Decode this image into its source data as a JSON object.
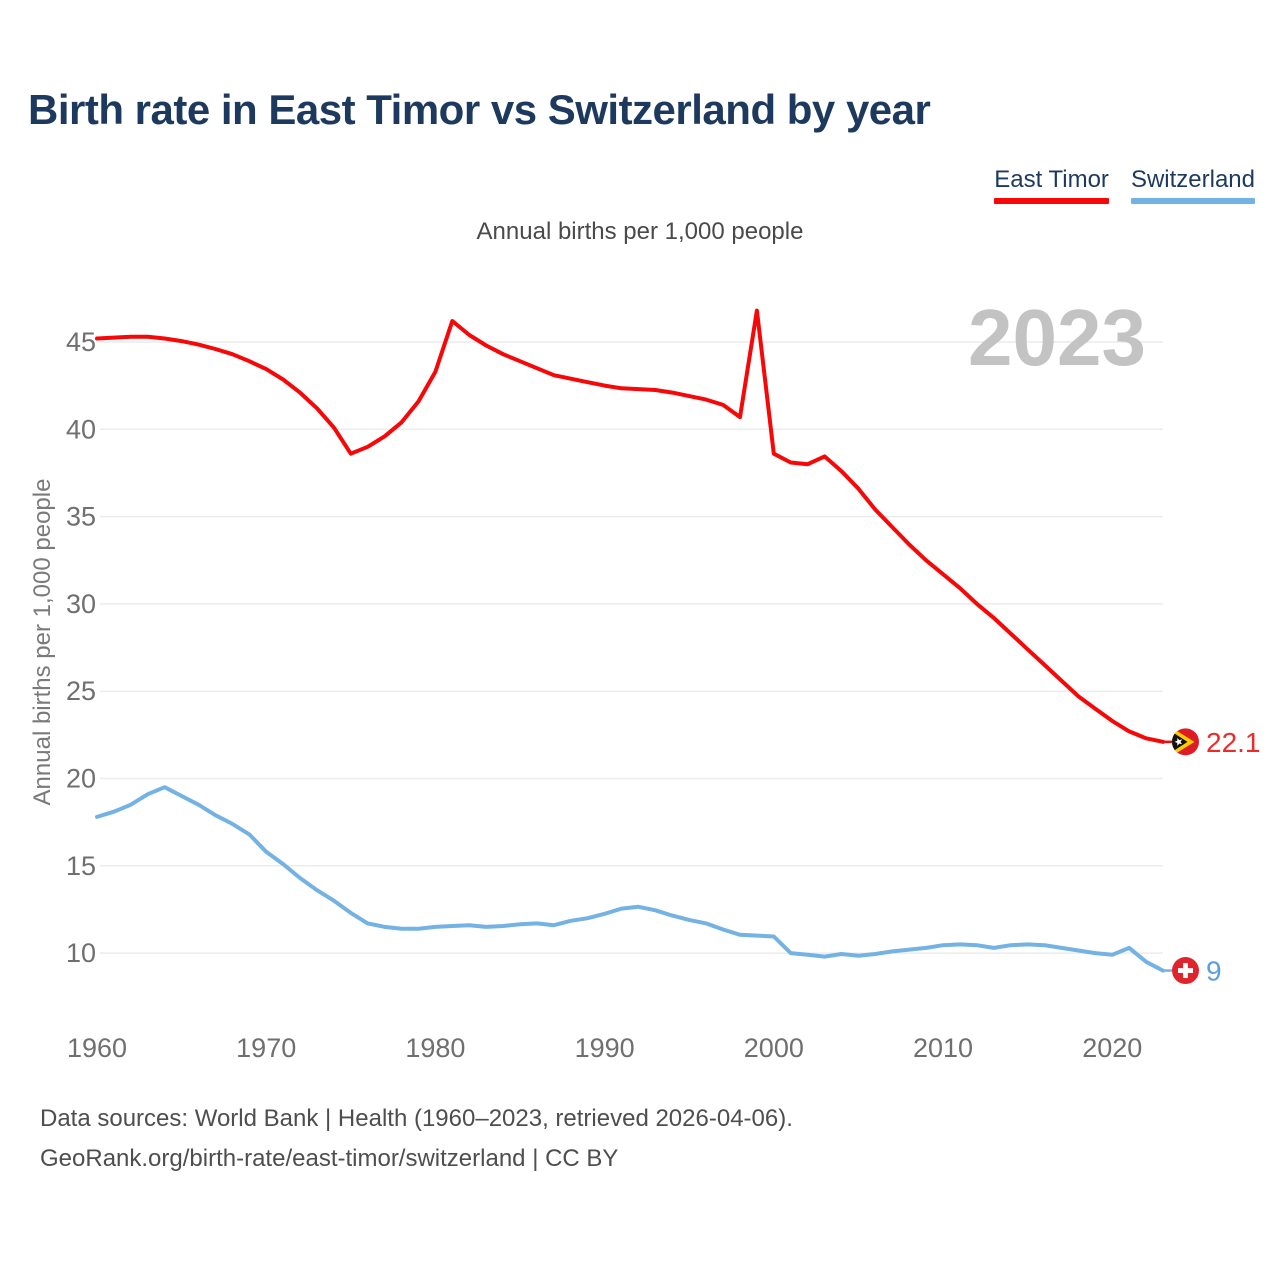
{
  "page": {
    "title": "Birth rate in East Timor vs Switzerland by year",
    "subtitle": "Annual births per 1,000 people",
    "watermark": "2023",
    "footer_line1": "Data sources: World Bank | Health (1960–2023, retrieved 2026-04-06).",
    "footer_line2": "GeoRank.org/birth-rate/east-timor/switzerland | CC BY"
  },
  "legend": {
    "items": [
      {
        "label": "East Timor",
        "color": "#f70707"
      },
      {
        "label": "Switzerland",
        "color": "#74b2e3"
      }
    ]
  },
  "chart_data": {
    "type": "line",
    "title": "Birth rate in East Timor vs Switzerland by year",
    "subtitle": "Annual births per 1,000 people",
    "xlabel": "",
    "ylabel": "Annual births per 1,000 people",
    "grid": "horizontal",
    "legend_position": "top-right",
    "xlim": [
      1960,
      2023
    ],
    "ylim": [
      8,
      47.5
    ],
    "x_ticks": [
      1960,
      1970,
      1980,
      1990,
      2000,
      2010,
      2020
    ],
    "y_ticks": [
      10,
      15,
      20,
      25,
      30,
      35,
      40,
      45
    ],
    "watermark": "2023",
    "x": [
      1960,
      1961,
      1962,
      1963,
      1964,
      1965,
      1966,
      1967,
      1968,
      1969,
      1970,
      1971,
      1972,
      1973,
      1974,
      1975,
      1976,
      1977,
      1978,
      1979,
      1980,
      1981,
      1982,
      1983,
      1984,
      1985,
      1986,
      1987,
      1988,
      1989,
      1990,
      1991,
      1992,
      1993,
      1994,
      1995,
      1996,
      1997,
      1998,
      1999,
      2000,
      2001,
      2002,
      2003,
      2004,
      2005,
      2006,
      2007,
      2008,
      2009,
      2010,
      2011,
      2012,
      2013,
      2014,
      2015,
      2016,
      2017,
      2018,
      2019,
      2020,
      2021,
      2022,
      2023
    ],
    "series": [
      {
        "name": "East Timor",
        "color": "#f70707",
        "end_label": "22.1",
        "end_label_color": "#ee2b2b",
        "flag_icon": "east-timor-flag-icon",
        "values": [
          45.2,
          45.25,
          45.3,
          45.3,
          45.2,
          45.05,
          44.85,
          44.6,
          44.3,
          43.9,
          43.45,
          42.85,
          42.1,
          41.2,
          40.1,
          38.6,
          39.0,
          39.6,
          40.4,
          41.6,
          43.3,
          46.2,
          45.4,
          44.8,
          44.3,
          43.9,
          43.5,
          43.1,
          42.9,
          42.7,
          42.5,
          42.35,
          42.3,
          42.25,
          42.1,
          41.9,
          41.7,
          41.4,
          40.7,
          46.8,
          38.6,
          38.1,
          38.0,
          38.45,
          37.6,
          36.6,
          35.4,
          34.4,
          33.4,
          32.5,
          31.7,
          30.9,
          30.0,
          29.2,
          28.3,
          27.4,
          26.5,
          25.6,
          24.7,
          24.0,
          23.3,
          22.7,
          22.3,
          22.1
        ]
      },
      {
        "name": "Switzerland",
        "color": "#74b2e3",
        "end_label": "9",
        "end_label_color": "#5b9fd8",
        "flag_icon": "switzerland-flag-icon",
        "values": [
          17.8,
          18.1,
          18.5,
          19.1,
          19.5,
          19.0,
          18.5,
          17.9,
          17.4,
          16.8,
          15.8,
          15.1,
          14.3,
          13.6,
          13.0,
          12.3,
          11.7,
          11.5,
          11.4,
          11.4,
          11.5,
          11.55,
          11.6,
          11.5,
          11.55,
          11.65,
          11.7,
          11.6,
          11.85,
          12.0,
          12.25,
          12.55,
          12.65,
          12.45,
          12.15,
          11.9,
          11.7,
          11.35,
          11.05,
          11.0,
          10.95,
          10.0,
          9.9,
          9.8,
          9.95,
          9.85,
          9.95,
          10.1,
          10.2,
          10.3,
          10.45,
          10.5,
          10.45,
          10.3,
          10.45,
          10.5,
          10.45,
          10.3,
          10.15,
          10.0,
          9.9,
          10.3,
          9.5,
          9.0
        ]
      }
    ]
  },
  "style": {
    "gridline_color": "#ececec",
    "tick_label_color": "#6f6f6f",
    "watermark_color": "#c3c3c3",
    "east_timor_flag": {
      "red": "#dd1c24",
      "yellow": "#ffcc00",
      "black": "#121212",
      "star": "#ffffff"
    },
    "switzerland_flag": {
      "red": "#e0242c",
      "cross": "#ffffff"
    }
  }
}
